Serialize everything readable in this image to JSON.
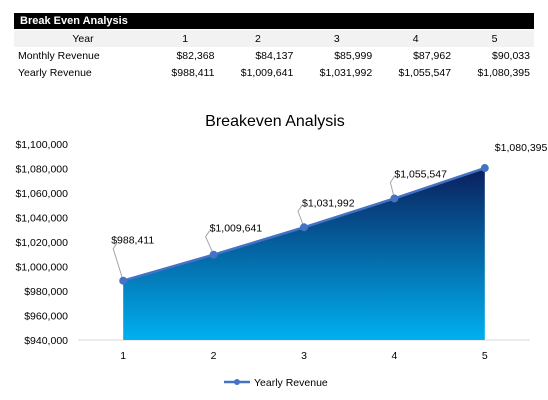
{
  "sheet": {
    "title": "Break Even Analysis",
    "header_label": "Year",
    "years": [
      "1",
      "2",
      "3",
      "4",
      "5"
    ],
    "rows": [
      {
        "label": "Monthly Revenue",
        "values": [
          "$82,368",
          "$84,137",
          "$85,999",
          "$87,962",
          "$90,033"
        ]
      },
      {
        "label": "Yearly Revenue",
        "values": [
          "$988,411",
          "$1,009,641",
          "$1,031,992",
          "$1,055,547",
          "$1,080,395"
        ]
      }
    ]
  },
  "chart_data": {
    "type": "area",
    "title": "Breakeven Analysis",
    "xlabel": "",
    "ylabel": "",
    "categories": [
      "1",
      "2",
      "3",
      "4",
      "5"
    ],
    "series": [
      {
        "name": "Yearly Revenue",
        "values": [
          988411,
          1009641,
          1031992,
          1055547,
          1080395
        ],
        "labels": [
          "$988,411",
          "$1,009,641",
          "$1,031,992",
          "$1,055,547",
          "$1,080,395"
        ]
      }
    ],
    "ylim": [
      940000,
      1100000
    ],
    "yticks": [
      940000,
      960000,
      980000,
      1000000,
      1020000,
      1040000,
      1060000,
      1080000,
      1100000
    ],
    "ytick_labels": [
      "$940,000",
      "$960,000",
      "$980,000",
      "$1,000,000",
      "$1,020,000",
      "$1,040,000",
      "$1,060,000",
      "$1,080,000",
      "$1,100,000"
    ],
    "grid": false,
    "legend_position": "bottom",
    "colors": {
      "area_top": "#0a1f5c",
      "area_bottom": "#00b0f0",
      "line": "#4472c4"
    }
  }
}
